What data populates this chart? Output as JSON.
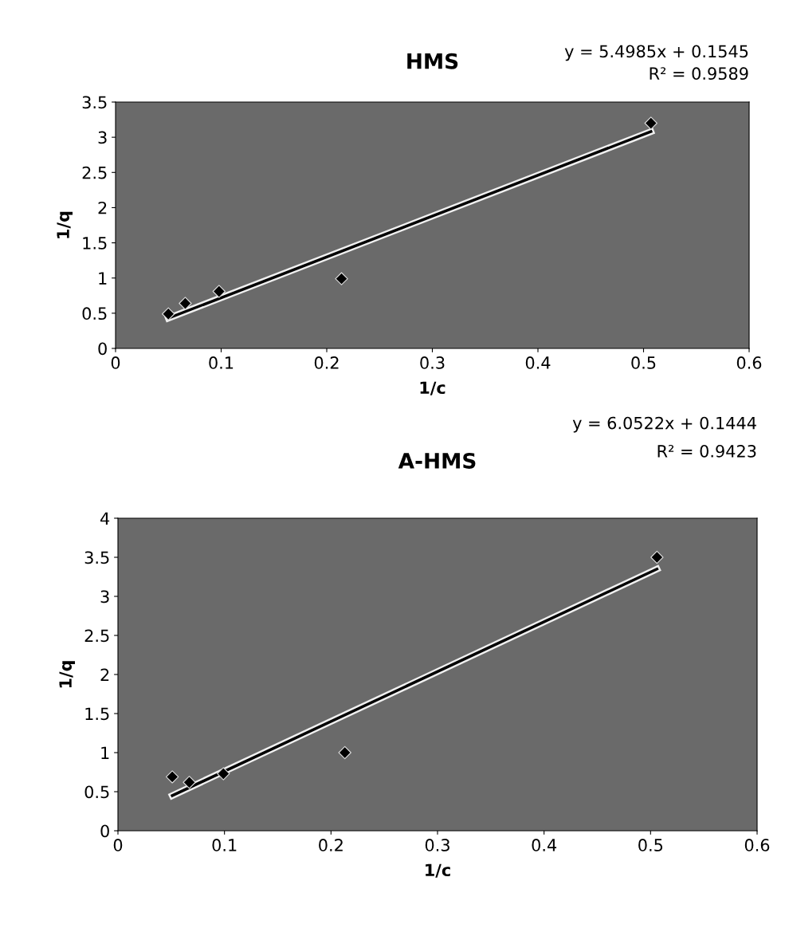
{
  "chart_data": [
    {
      "type": "scatter",
      "title": "HMS",
      "xlabel": "1/c",
      "ylabel": "1/q",
      "annotations": [
        "y = 5.4985x + 0.1545",
        "R² = 0.9589"
      ],
      "xlim": [
        0,
        0.6
      ],
      "xticks": [
        0,
        0.1,
        0.2,
        0.3,
        0.4,
        0.5,
        0.6
      ],
      "ylim": [
        0,
        3.5
      ],
      "yticks": [
        0,
        0.5,
        1,
        1.5,
        2,
        2.5,
        3,
        3.5
      ],
      "series": [
        {
          "color": "#000000",
          "marker": "diamond",
          "x": [
            0.05,
            0.066,
            0.098,
            0.214,
            0.507
          ],
          "values": [
            0.49,
            0.64,
            0.81,
            0.99,
            3.2
          ]
        },
        {
          "type": "line",
          "color": "#000000",
          "x": [
            0.05,
            0.507
          ],
          "values": [
            0.43,
            3.08
          ]
        }
      ]
    },
    {
      "type": "scatter",
      "title": "A-HMS",
      "xlabel": "1/c",
      "ylabel": "1/q",
      "annotations": [
        "y = 6.0522x + 0.1444",
        "R² = 0.9423"
      ],
      "xlim": [
        0,
        0.6
      ],
      "xticks": [
        0,
        0.1,
        0.2,
        0.3,
        0.4,
        0.5,
        0.6
      ],
      "ylim": [
        0,
        4
      ],
      "yticks": [
        0,
        0.5,
        1,
        1.5,
        2,
        2.5,
        3,
        3.5,
        4
      ],
      "series": [
        {
          "color": "#000000",
          "marker": "diamond",
          "x": [
            0.051,
            0.067,
            0.099,
            0.213,
            0.506
          ],
          "values": [
            0.69,
            0.62,
            0.73,
            1.0,
            3.5
          ]
        },
        {
          "type": "line",
          "color": "#000000",
          "x": [
            0.051,
            0.506
          ],
          "values": [
            0.45,
            3.35
          ]
        }
      ]
    }
  ]
}
